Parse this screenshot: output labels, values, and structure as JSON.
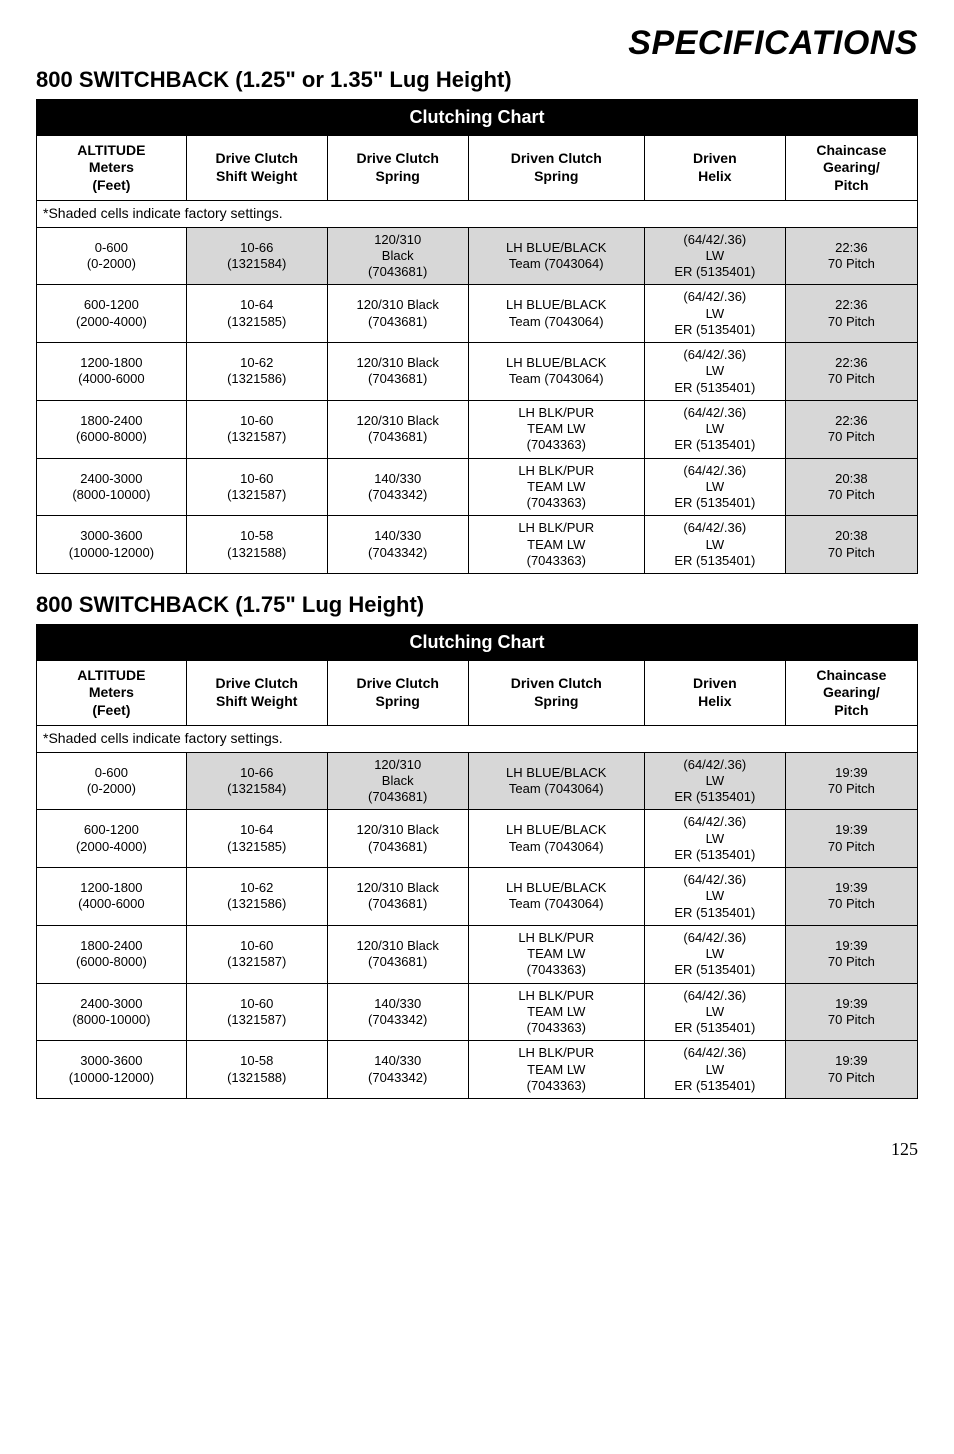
{
  "page_title": "SPECIFICATIONS",
  "page_number": "125",
  "sections": [
    {
      "heading": "800 SWITCHBACK (1.25\" or 1.35\" Lug Height)",
      "chart_title": "Clutching Chart",
      "headers": [
        "ALTITUDE\nMeters\n(Feet)",
        "Drive Clutch\nShift Weight",
        "Drive Clutch\nSpring",
        "Driven Clutch\nSpring",
        "Driven\nHelix",
        "Chaincase\nGearing/\nPitch"
      ],
      "note": "*Shaded cells indicate factory settings.",
      "col_widths": [
        "17%",
        "16%",
        "16%",
        "20%",
        "16%",
        "15%"
      ],
      "rows": [
        {
          "shaded": true,
          "cells": [
            "0-600\n(0-2000)",
            "10-66\n(1321584)",
            "120/310\nBlack\n(7043681)",
            "LH BLUE/BLACK\nTeam (7043064)",
            "(64/42/.36)\nLW\nER (5135401)",
            "22:36\n70 Pitch"
          ]
        },
        {
          "shaded": false,
          "cells": [
            "600-1200\n(2000-4000)",
            "10-64\n(1321585)",
            "120/310 Black\n(7043681)",
            "LH BLUE/BLACK\nTeam (7043064)",
            "(64/42/.36)\nLW\nER (5135401)",
            "22:36\n70 Pitch"
          ]
        },
        {
          "shaded": false,
          "cells": [
            "1200-1800\n(4000-6000",
            "10-62\n(1321586)",
            "120/310 Black\n(7043681)",
            "LH BLUE/BLACK\nTeam (7043064)",
            "(64/42/.36)\nLW\nER (5135401)",
            "22:36\n70 Pitch"
          ]
        },
        {
          "shaded": false,
          "cells": [
            "1800-2400\n(6000-8000)",
            "10-60\n(1321587)",
            "120/310 Black\n(7043681)",
            "LH BLK/PUR\nTEAM LW\n(7043363)",
            "(64/42/.36)\nLW\nER (5135401)",
            "22:36\n70 Pitch"
          ]
        },
        {
          "shaded": false,
          "cells": [
            "2400-3000\n(8000-10000)",
            "10-60\n(1321587)",
            "140/330\n(7043342)",
            "LH BLK/PUR\nTEAM LW\n(7043363)",
            "(64/42/.36)\nLW\nER (5135401)",
            "20:38\n70 Pitch"
          ]
        },
        {
          "shaded": false,
          "cells": [
            "3000-3600\n(10000-12000)",
            "10-58\n(1321588)",
            "140/330\n(7043342)",
            "LH BLK/PUR\nTEAM LW\n(7043363)",
            "(64/42/.36)\nLW\nER (5135401)",
            "20:38\n70 Pitch"
          ]
        }
      ]
    },
    {
      "heading": "800 SWITCHBACK (1.75\" Lug Height)",
      "chart_title": "Clutching Chart",
      "headers": [
        "ALTITUDE\nMeters\n(Feet)",
        "Drive Clutch\nShift Weight",
        "Drive Clutch\nSpring",
        "Driven Clutch\nSpring",
        "Driven\nHelix",
        "Chaincase\nGearing/\nPitch"
      ],
      "note": "*Shaded cells indicate factory settings.",
      "col_widths": [
        "17%",
        "16%",
        "16%",
        "20%",
        "16%",
        "15%"
      ],
      "rows": [
        {
          "shaded": true,
          "cells": [
            "0-600\n(0-2000)",
            "10-66\n(1321584)",
            "120/310\nBlack\n(7043681)",
            "LH BLUE/BLACK\nTeam (7043064)",
            "(64/42/.36)\nLW\nER (5135401)",
            "19:39\n70 Pitch"
          ]
        },
        {
          "shaded": false,
          "cells": [
            "600-1200\n(2000-4000)",
            "10-64\n(1321585)",
            "120/310 Black\n(7043681)",
            "LH BLUE/BLACK\nTeam (7043064)",
            "(64/42/.36)\nLW\nER (5135401)",
            "19:39\n70 Pitch"
          ]
        },
        {
          "shaded": false,
          "cells": [
            "1200-1800\n(4000-6000",
            "10-62\n(1321586)",
            "120/310 Black\n(7043681)",
            "LH BLUE/BLACK\nTeam (7043064)",
            "(64/42/.36)\nLW\nER (5135401)",
            "19:39\n70 Pitch"
          ]
        },
        {
          "shaded": false,
          "cells": [
            "1800-2400\n(6000-8000)",
            "10-60\n(1321587)",
            "120/310 Black\n(7043681)",
            "LH BLK/PUR\nTEAM LW\n(7043363)",
            "(64/42/.36)\nLW\nER (5135401)",
            "19:39\n70 Pitch"
          ]
        },
        {
          "shaded": false,
          "cells": [
            "2400-3000\n(8000-10000)",
            "10-60\n(1321587)",
            "140/330\n(7043342)",
            "LH BLK/PUR\nTEAM LW\n(7043363)",
            "(64/42/.36)\nLW\nER (5135401)",
            "19:39\n70 Pitch"
          ]
        },
        {
          "shaded": false,
          "cells": [
            "3000-3600\n(10000-12000)",
            "10-58\n(1321588)",
            "140/330\n(7043342)",
            "LH BLK/PUR\nTEAM LW\n(7043363)",
            "(64/42/.36)\nLW\nER (5135401)",
            "19:39\n70 Pitch"
          ]
        }
      ]
    }
  ]
}
